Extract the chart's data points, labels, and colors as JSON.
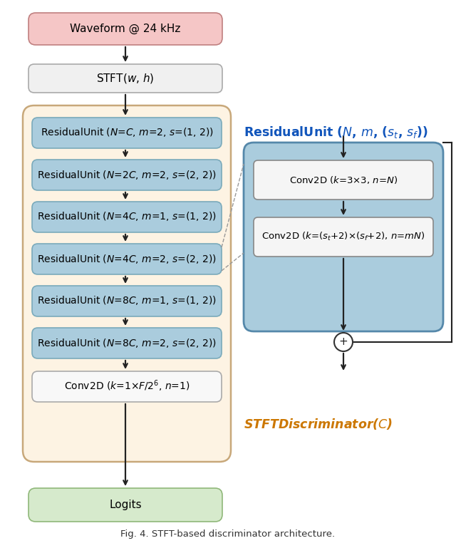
{
  "bg_color": "#ffffff",
  "fig_width": 6.4,
  "fig_height": 7.69,
  "dpi": 100,
  "caption": "Fig. 4. STFT-based discriminator architecture.",
  "waveform_box": {
    "label": "Waveform @ 24 kHz",
    "facecolor": "#f5c6c6",
    "edgecolor": "#c08080",
    "text_color": "#000000",
    "fontsize": 11
  },
  "stft_box": {
    "facecolor": "#f0f0f0",
    "edgecolor": "#aaaaaa",
    "text_color": "#000000",
    "fontsize": 11
  },
  "outer_box": {
    "facecolor": "#fdf3e3",
    "edgecolor": "#c8a87a",
    "linewidth": 1.8
  },
  "residual_box_style": {
    "facecolor": "#aaccdd",
    "edgecolor": "#7aaabb",
    "text_color": "#000000",
    "fontsize": 10.0
  },
  "conv2d_main_box": {
    "facecolor": "#f8f8f8",
    "edgecolor": "#aaaaaa",
    "text_color": "#000000",
    "fontsize": 10.0
  },
  "logits_box": {
    "label": "Logits",
    "facecolor": "#d6eacc",
    "edgecolor": "#90b87a",
    "text_color": "#000000",
    "fontsize": 11
  },
  "right_outer_box": {
    "facecolor": "#aaccdd",
    "edgecolor": "#5588aa",
    "linewidth": 2.0
  },
  "right_inner_box": {
    "facecolor": "#f5f5f5",
    "edgecolor": "#888888",
    "text_color": "#000000",
    "fontsize": 9.5
  },
  "residual_unit_title": {
    "color": "#1155bb",
    "fontsize": 12.5,
    "fontweight": "bold"
  },
  "stft_discriminator_label": {
    "text": "STFTDiscriminator(C)",
    "color": "#cc7700",
    "fontsize": 12.5,
    "fontstyle": "italic",
    "fontweight": "bold"
  },
  "residual_labels": [
    "ResidualUnit ($N$=$C$, $m$=2, $s$=(1, 2))",
    "ResidualUnit ($N$=2$C$, $m$=2, $s$=(2, 2))",
    "ResidualUnit ($N$=4$C$, $m$=1, $s$=(1, 2))",
    "ResidualUnit ($N$=4$C$, $m$=2, $s$=(2, 2))",
    "ResidualUnit ($N$=8$C$, $m$=1, $s$=(1, 2))",
    "ResidualUnit ($N$=8$C$, $m$=2, $s$=(2, 2))"
  ]
}
